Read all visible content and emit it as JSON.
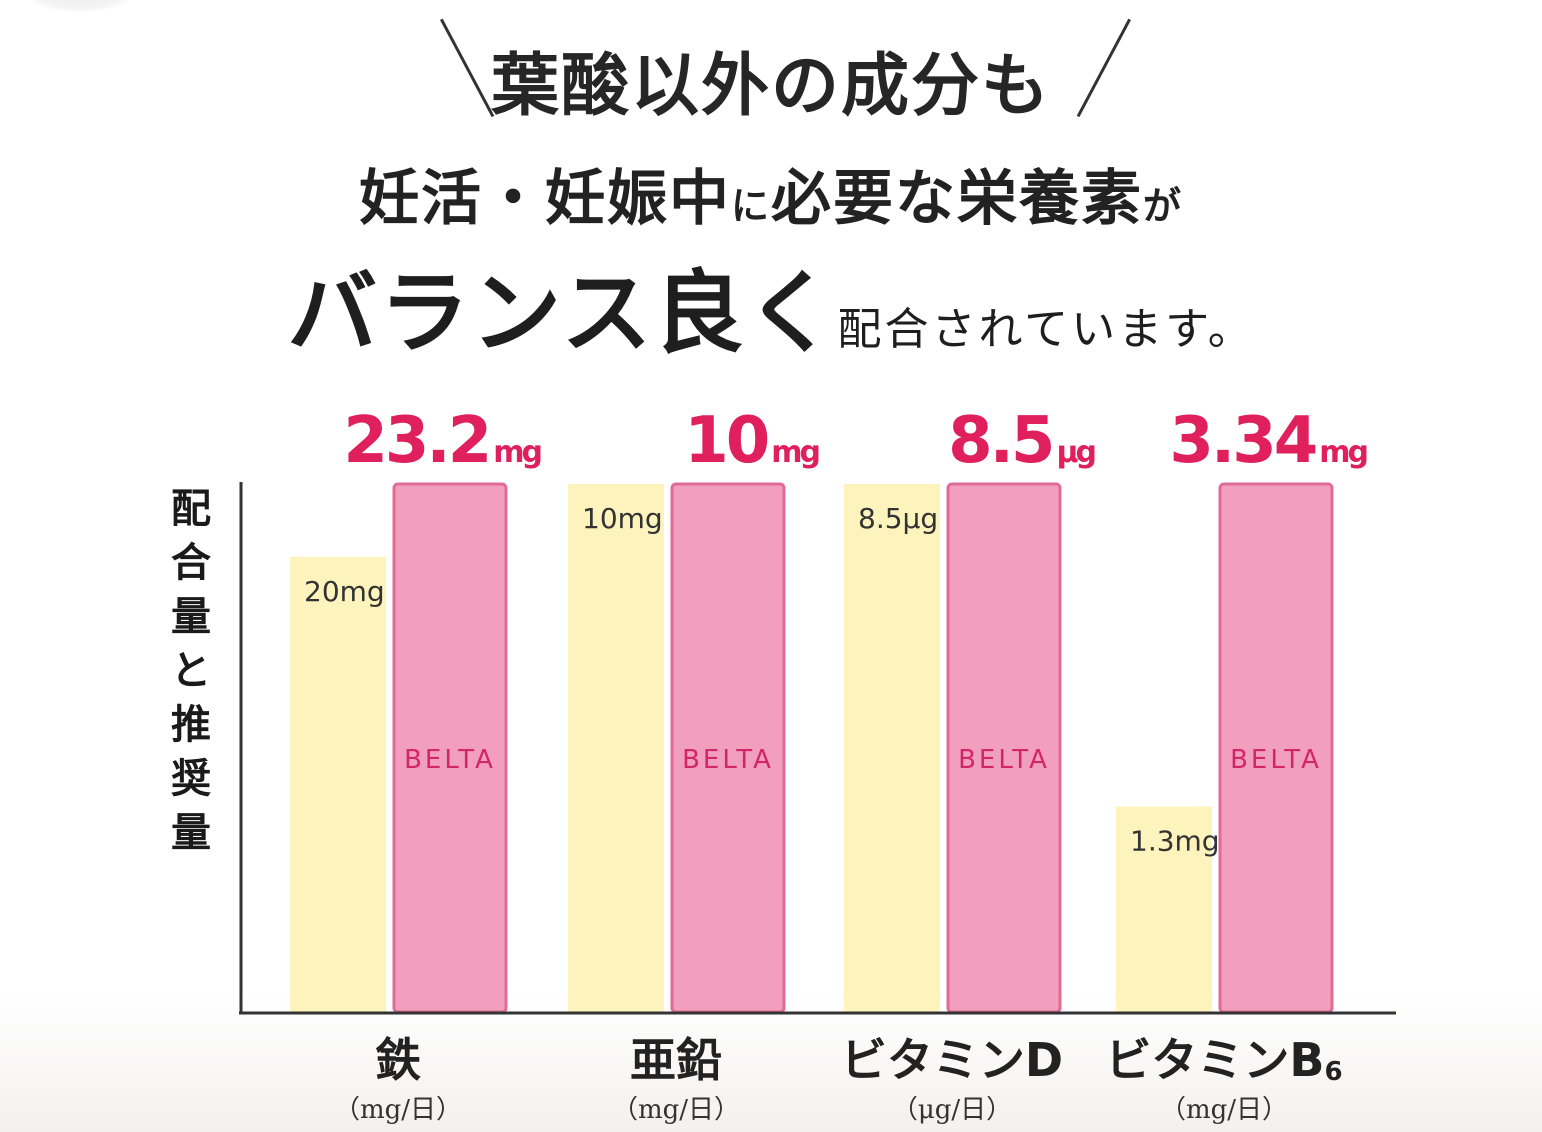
{
  "headline": {
    "line1": "葉酸以外の成分も",
    "line2_a": "妊活・妊娠中",
    "line2_b": "に",
    "line2_c": "必要な栄養素",
    "line2_d": "が",
    "line3_big": "バランス良く",
    "line3_rest": "配合されています。"
  },
  "colors": {
    "recommended_bar": "#fdf3bc",
    "belta_bar": "#f29ebd",
    "accent": "#e0205d"
  },
  "chart_data": {
    "type": "bar",
    "ylabel": "配合量と推奨量",
    "categories": [
      {
        "name": "鉄",
        "sub": "",
        "unit": "（mg/日）",
        "recommended_value": 20,
        "recommended_label": "20mg",
        "belta_value": 23.2,
        "belta_num": "23.2",
        "belta_unit": "mg"
      },
      {
        "name": "亜鉛",
        "sub": "",
        "unit": "（mg/日）",
        "recommended_value": 10,
        "recommended_label": "10mg",
        "belta_value": 10,
        "belta_num": "10",
        "belta_unit": "mg"
      },
      {
        "name": "ビタミンD",
        "sub": "",
        "unit": "（μg/日）",
        "recommended_value": 8.5,
        "recommended_label": "8.5μg",
        "belta_value": 8.5,
        "belta_num": "8.5",
        "belta_unit": "μg"
      },
      {
        "name": "ビタミンB",
        "sub": "6",
        "unit": "（mg/日）",
        "recommended_value": 1.3,
        "recommended_label": "1.3mg",
        "belta_value": 3.34,
        "belta_num": "3.34",
        "belta_unit": "mg"
      }
    ],
    "series": [
      {
        "name": "",
        "key": "recommended"
      },
      {
        "name": "BELTA",
        "key": "belta"
      }
    ],
    "belta_bar_label": "BELTA",
    "grid": false,
    "legend": "none"
  }
}
